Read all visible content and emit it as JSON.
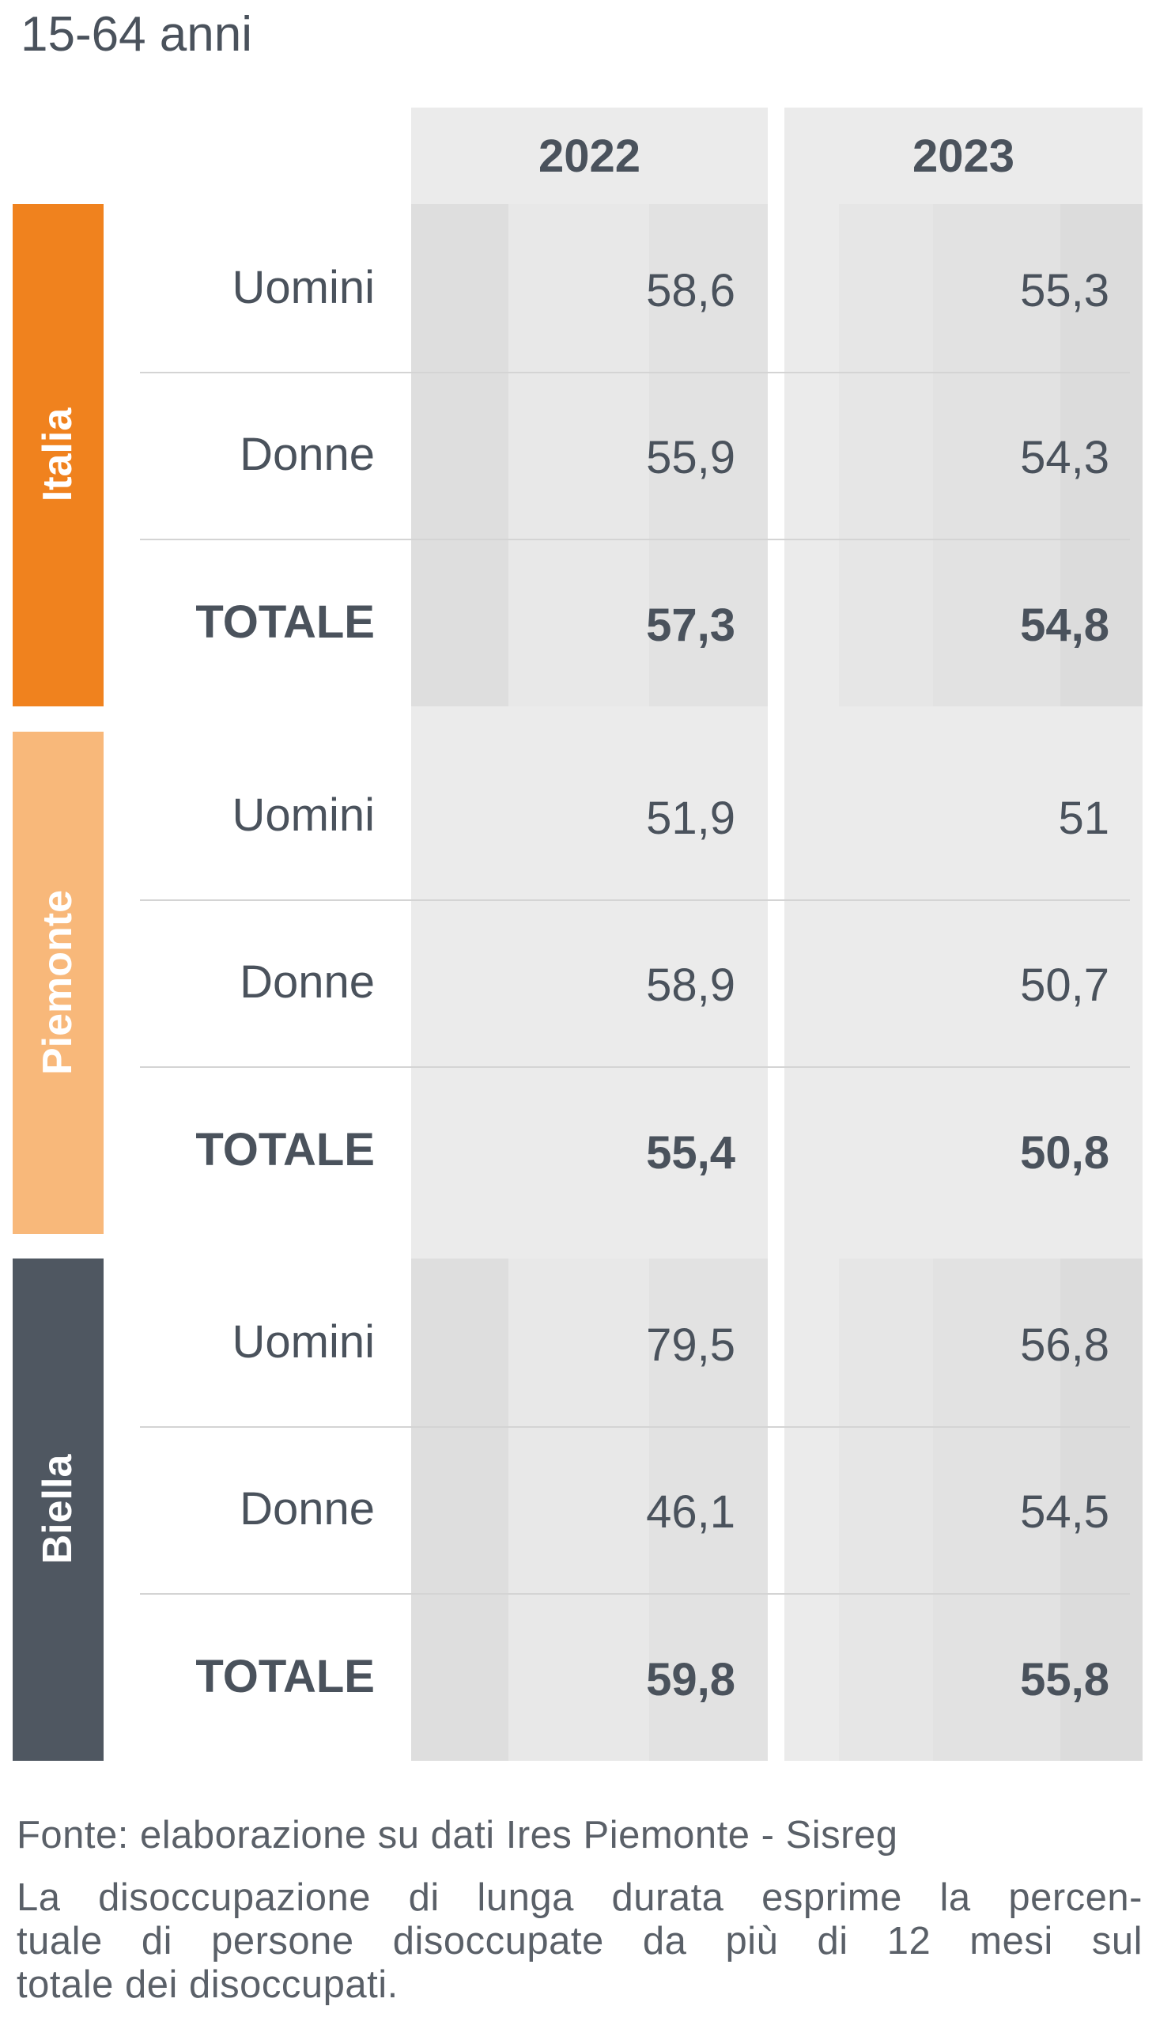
{
  "title": "15-64 anni",
  "table": {
    "columns": [
      "2022",
      "2023"
    ],
    "groups": [
      {
        "name": "Italia",
        "rows": [
          {
            "label": "Uomini",
            "values": [
              "58,6",
              "55,3"
            ]
          },
          {
            "label": "Donne",
            "values": [
              "55,9",
              "54,3"
            ]
          },
          {
            "label": "TOTALE",
            "values": [
              "57,3",
              "54,8"
            ]
          }
        ]
      },
      {
        "name": "Piemonte",
        "rows": [
          {
            "label": "Uomini",
            "values": [
              "51,9",
              "51"
            ]
          },
          {
            "label": "Donne",
            "values": [
              "58,9",
              "50,7"
            ]
          },
          {
            "label": "TOTALE",
            "values": [
              "55,4",
              "50,8"
            ]
          }
        ]
      },
      {
        "name": "Biella",
        "rows": [
          {
            "label": "Uomini",
            "values": [
              "79,5",
              "56,8"
            ]
          },
          {
            "label": "Donne",
            "values": [
              "46,1",
              "54,5"
            ]
          },
          {
            "label": "TOTALE",
            "values": [
              "59,8",
              "55,8"
            ]
          }
        ]
      }
    ]
  },
  "footer": {
    "source": "Fonte: elaborazione su dati Ires Piemonte - Sisreg",
    "note_lines": [
      "La disoccupazione di lunga durata esprime la percen-",
      "tuale di persone disoccupate da più di 12 mesi sul",
      "totale dei disoccupati."
    ]
  }
}
